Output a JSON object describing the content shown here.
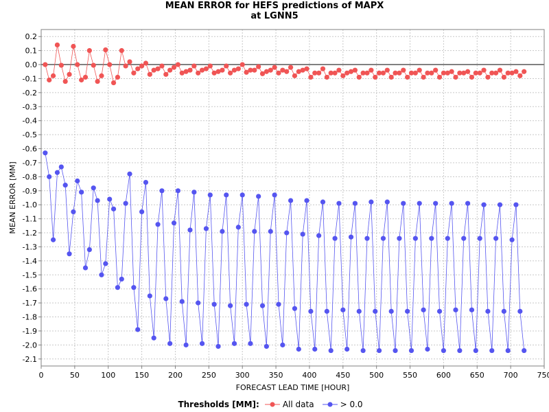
{
  "chart_data": {
    "type": "line",
    "title": "MEAN ERROR for HEFS predictions of MAPX",
    "subtitle": "at LGNN5",
    "xlabel": "FORECAST LEAD TIME [HOUR]",
    "ylabel": "MEAN ERROR [MM]",
    "xlim": [
      0,
      750
    ],
    "ylim": [
      -2.15,
      0.25
    ],
    "xticks": [
      0,
      50,
      100,
      150,
      200,
      250,
      300,
      350,
      400,
      450,
      500,
      550,
      600,
      650,
      700,
      750
    ],
    "yticks": [
      0.2,
      0.1,
      0.0,
      -0.1,
      -0.2,
      -0.3,
      -0.4,
      -0.5,
      -0.6,
      -0.7,
      -0.8,
      -0.9,
      -1.0,
      -1.1,
      -1.2,
      -1.3,
      -1.4,
      -1.5,
      -1.6,
      -1.7,
      -1.8,
      -1.9,
      -2.0,
      -2.1
    ],
    "ytick_labels": [
      "0.2",
      "0.1",
      "0.0",
      "-0.1",
      "-0.2",
      "-0.3",
      "-0.4",
      "-0.5",
      "-0.6",
      "-0.7",
      "-0.8",
      "-0.9",
      "-1.0",
      "-1.1",
      "-1.2",
      "-1.3",
      "-1.4",
      "-1.5",
      "-1.6",
      "-1.7",
      "-1.8",
      "-1.9",
      "-2.0",
      "-2.1"
    ],
    "grid": true,
    "reference_line_y": 0.0,
    "legend_title": "Thresholds [MM]:",
    "legend_position": "bottom",
    "x": [
      6,
      12,
      18,
      24,
      30,
      36,
      42,
      48,
      54,
      60,
      66,
      72,
      78,
      84,
      90,
      96,
      102,
      108,
      114,
      120,
      126,
      132,
      138,
      144,
      150,
      156,
      162,
      168,
      174,
      180,
      186,
      192,
      198,
      204,
      210,
      216,
      222,
      228,
      234,
      240,
      246,
      252,
      258,
      264,
      270,
      276,
      282,
      288,
      294,
      300,
      306,
      312,
      318,
      324,
      330,
      336,
      342,
      348,
      354,
      360,
      366,
      372,
      378,
      384,
      390,
      396,
      402,
      408,
      414,
      420,
      426,
      432,
      438,
      444,
      450,
      456,
      462,
      468,
      474,
      480,
      486,
      492,
      498,
      504,
      510,
      516,
      522,
      528,
      534,
      540,
      546,
      552,
      558,
      564,
      570,
      576,
      582,
      588,
      594,
      600,
      606,
      612,
      618,
      624,
      630,
      636,
      642,
      648,
      654,
      660,
      666,
      672,
      678,
      684,
      690,
      696,
      702,
      708,
      714,
      720
    ],
    "series": [
      {
        "name": "All data",
        "color": "#f05555",
        "values": [
          0.0,
          -0.11,
          -0.08,
          0.14,
          -0.005,
          -0.12,
          -0.07,
          0.13,
          0.0,
          -0.11,
          -0.09,
          0.1,
          -0.005,
          -0.12,
          -0.08,
          0.105,
          0.0,
          -0.13,
          -0.09,
          0.1,
          -0.01,
          0.02,
          -0.06,
          -0.03,
          -0.01,
          0.01,
          -0.07,
          -0.04,
          -0.03,
          -0.01,
          -0.07,
          -0.04,
          -0.02,
          0.0,
          -0.06,
          -0.05,
          -0.04,
          -0.01,
          -0.06,
          -0.04,
          -0.03,
          -0.01,
          -0.06,
          -0.05,
          -0.04,
          -0.01,
          -0.06,
          -0.04,
          -0.03,
          0.0,
          -0.055,
          -0.04,
          -0.04,
          -0.015,
          -0.065,
          -0.05,
          -0.04,
          -0.02,
          -0.06,
          -0.04,
          -0.05,
          -0.02,
          -0.08,
          -0.05,
          -0.04,
          -0.03,
          -0.09,
          -0.06,
          -0.06,
          -0.03,
          -0.09,
          -0.06,
          -0.06,
          -0.04,
          -0.08,
          -0.06,
          -0.05,
          -0.04,
          -0.09,
          -0.06,
          -0.06,
          -0.04,
          -0.09,
          -0.06,
          -0.06,
          -0.04,
          -0.09,
          -0.06,
          -0.06,
          -0.04,
          -0.09,
          -0.06,
          -0.06,
          -0.04,
          -0.09,
          -0.06,
          -0.06,
          -0.04,
          -0.09,
          -0.06,
          -0.06,
          -0.05,
          -0.09,
          -0.06,
          -0.06,
          -0.05,
          -0.09,
          -0.06,
          -0.06,
          -0.04,
          -0.09,
          -0.06,
          -0.06,
          -0.04,
          -0.09,
          -0.06,
          -0.06,
          -0.05,
          -0.08,
          -0.05
        ]
      },
      {
        "name": "> 0.0",
        "color": "#5555f0",
        "values": [
          -0.63,
          -0.8,
          -1.25,
          -0.77,
          -0.73,
          -0.86,
          -1.35,
          -1.05,
          -0.83,
          -0.91,
          -1.45,
          -1.32,
          -0.88,
          -0.97,
          -1.5,
          -1.42,
          -0.96,
          -1.03,
          -1.59,
          -1.53,
          -0.99,
          -0.78,
          -1.59,
          -1.89,
          -1.05,
          -0.84,
          -1.65,
          -1.95,
          -1.14,
          -0.9,
          -1.67,
          -1.99,
          -1.13,
          -0.9,
          -1.69,
          -2.0,
          -1.18,
          -0.91,
          -1.7,
          -1.99,
          -1.17,
          -0.93,
          -1.71,
          -2.01,
          -1.19,
          -0.93,
          -1.72,
          -1.99,
          -1.16,
          -0.93,
          -1.71,
          -1.99,
          -1.19,
          -0.94,
          -1.72,
          -2.01,
          -1.19,
          -0.93,
          -1.71,
          -2.0,
          -1.2,
          -0.97,
          -1.74,
          -2.03,
          -1.21,
          -0.97,
          -1.76,
          -2.03,
          -1.22,
          -0.98,
          -1.76,
          -2.04,
          -1.24,
          -0.99,
          -1.75,
          -2.03,
          -1.23,
          -0.99,
          -1.76,
          -2.04,
          -1.24,
          -0.98,
          -1.76,
          -2.04,
          -1.24,
          -0.98,
          -1.76,
          -2.04,
          -1.24,
          -0.99,
          -1.76,
          -2.04,
          -1.24,
          -0.99,
          -1.75,
          -2.03,
          -1.24,
          -0.99,
          -1.76,
          -2.04,
          -1.24,
          -0.99,
          -1.75,
          -2.04,
          -1.24,
          -0.99,
          -1.75,
          -2.04,
          -1.24,
          -1.0,
          -1.76,
          -2.04,
          -1.24,
          -1.0,
          -1.76,
          -2.04,
          -1.25,
          -1.0,
          -1.76,
          -2.04
        ]
      }
    ]
  }
}
